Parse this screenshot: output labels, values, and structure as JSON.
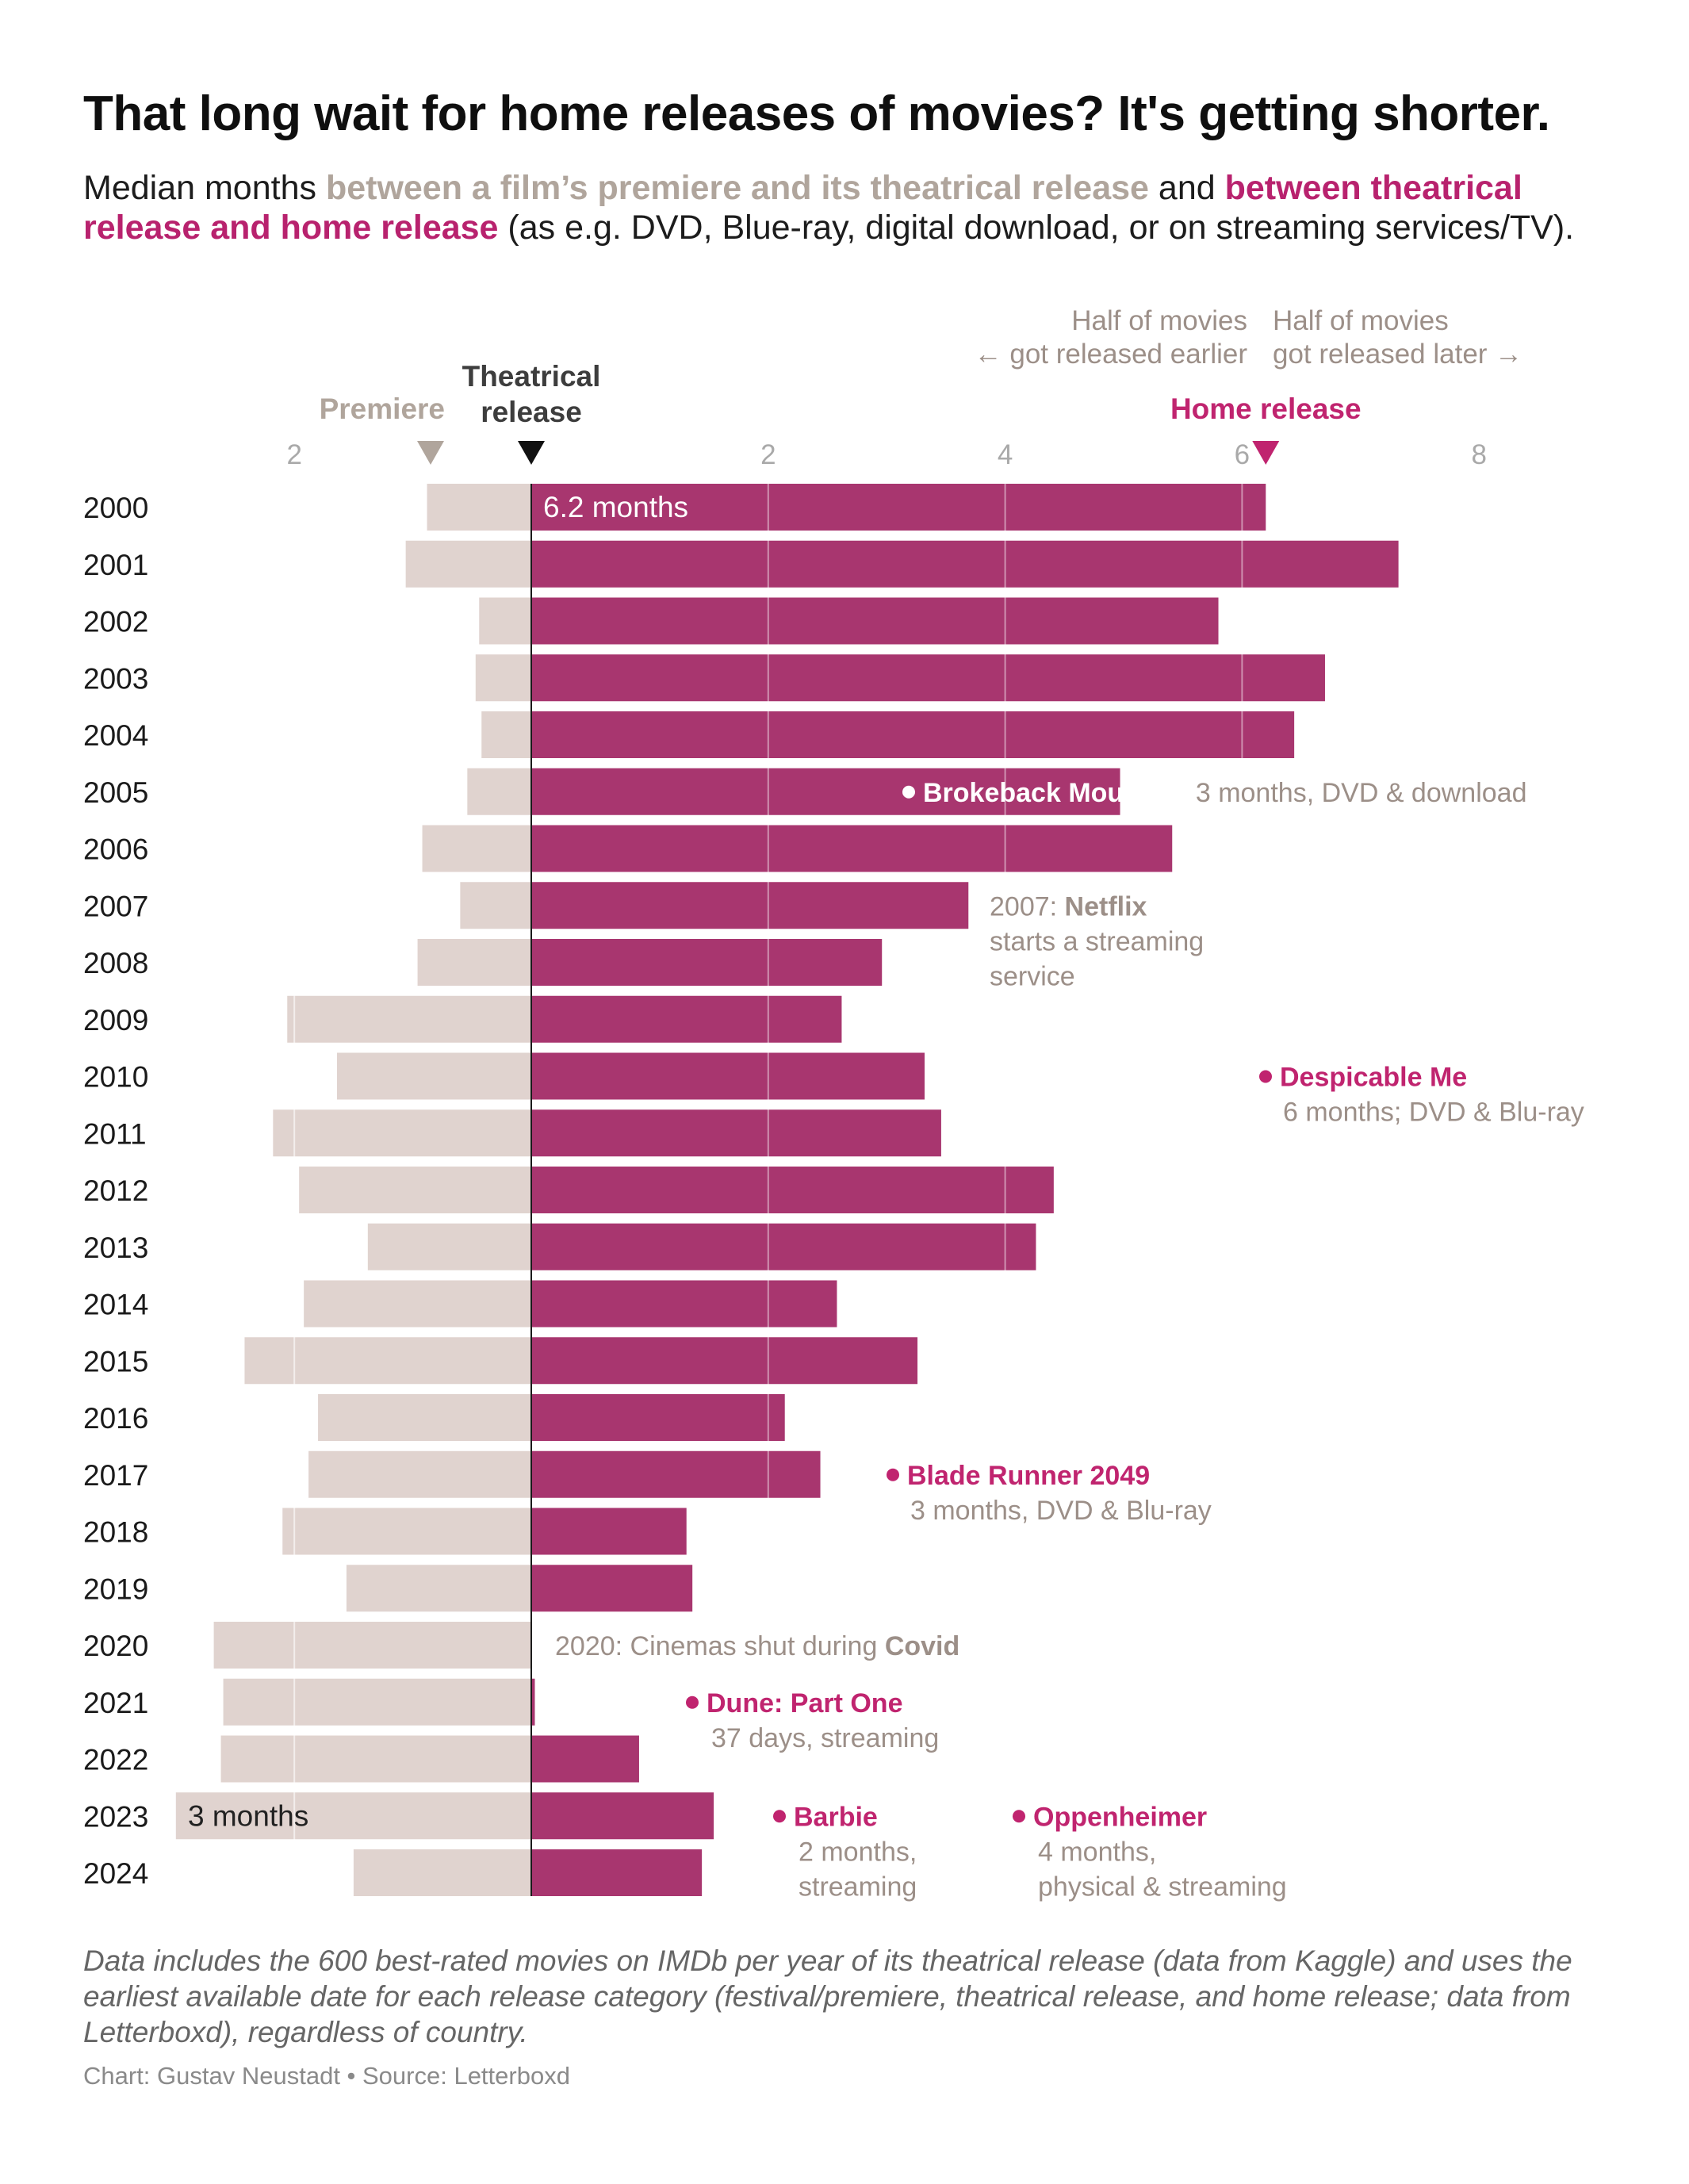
{
  "title": "That long wait for home releases of movies? It's getting shorter.",
  "subtitle": {
    "text1": "Median months ",
    "premiere_phrase": "between a film’s premiere and its theatrical release",
    "text2": " and ",
    "home_phrase": "between theatrical release and home release",
    "text3": " (as e.g. DVD, Blue-ray, digital download, or on streaming services/TV)."
  },
  "colors": {
    "premiere_bar": "#e0d3cf",
    "home_bar": "#a8366f",
    "accent_pink": "#c0246f",
    "premiere_label": "#b0a59c",
    "annotation_grey": "#9c8f88",
    "text": "#1a1a1a"
  },
  "chart_data": {
    "type": "bar",
    "orientation": "horizontal-diverging",
    "xlabel": "",
    "ylabel": "",
    "axis_ticks_left": [
      "2"
    ],
    "axis_ticks_right": [
      "2",
      "4",
      "6",
      "8"
    ],
    "xlim_months": [
      -3.2,
      8.8
    ],
    "grid": true,
    "markers": {
      "premiere": "Premiere",
      "theatrical": "Theatrical release",
      "home": "Home release",
      "premiere_value": -0.85,
      "home_value": 6.2
    },
    "half_labels": {
      "left_line1": "Half of movies",
      "left_line2": "← got released earlier",
      "right_line1": "Half of movies",
      "right_line2": "got released later →"
    },
    "categories": [
      "2000",
      "2001",
      "2002",
      "2003",
      "2004",
      "2005",
      "2006",
      "2007",
      "2008",
      "2009",
      "2010",
      "2011",
      "2012",
      "2013",
      "2014",
      "2015",
      "2016",
      "2017",
      "2018",
      "2019",
      "2020",
      "2021",
      "2022",
      "2023",
      "2024"
    ],
    "series": [
      {
        "name": "between a film’s premiere and its theatrical release",
        "values": [
          0.88,
          1.06,
          0.44,
          0.47,
          0.42,
          0.54,
          0.92,
          0.6,
          0.96,
          2.06,
          1.64,
          2.18,
          1.96,
          1.38,
          1.92,
          2.42,
          1.8,
          1.88,
          2.1,
          1.56,
          2.68,
          2.6,
          2.62,
          3.0,
          1.5
        ]
      },
      {
        "name": "between theatrical release and home release",
        "values": [
          6.2,
          7.32,
          5.8,
          6.7,
          6.44,
          4.97,
          5.41,
          3.69,
          2.96,
          2.62,
          3.32,
          3.46,
          4.41,
          4.26,
          2.58,
          3.26,
          2.14,
          2.44,
          1.31,
          1.36,
          0,
          0.03,
          0.91,
          1.54,
          1.44
        ]
      }
    ],
    "data_labels": {
      "year_2000_home": "6.2 months",
      "year_2023_premiere": "3 months"
    },
    "annotations": [
      {
        "year": "2005",
        "bullet_color": "white",
        "title": "Brokeback Mountain",
        "detail": " 3 months, DVD & download"
      },
      {
        "year": "2007",
        "lines": [
          "2007: ",
          "Netflix",
          "starts a streaming",
          "service"
        ]
      },
      {
        "year": "2010",
        "title": "Despicable Me",
        "detail": "6 months; DVD & Blu-ray"
      },
      {
        "year": "2017",
        "title": "Blade Runner 2049",
        "detail": "3 months, DVD & Blu-ray"
      },
      {
        "year": "2020",
        "lines": [
          "2020: Cinemas shut during ",
          "Covid"
        ]
      },
      {
        "year": "2021",
        "title": "Dune: Part One",
        "detail": "37 days, streaming"
      },
      {
        "year": "2023",
        "title": "Barbie",
        "detail_lines": [
          "2 months,",
          "streaming"
        ]
      },
      {
        "year": "2023b",
        "title": "Oppenheimer",
        "detail_lines": [
          "4 months,",
          "physical & streaming"
        ]
      }
    ]
  },
  "footnote": "Data includes the 600 best-rated movies on IMDb per year of its theatrical release (data from Kaggle) and uses the earliest available date for each release category (festival/premiere, theatrical release, and home release; data from Letterboxd), regardless of country.",
  "credit": "Chart: Gustav Neustadt • Source: Letterboxd"
}
